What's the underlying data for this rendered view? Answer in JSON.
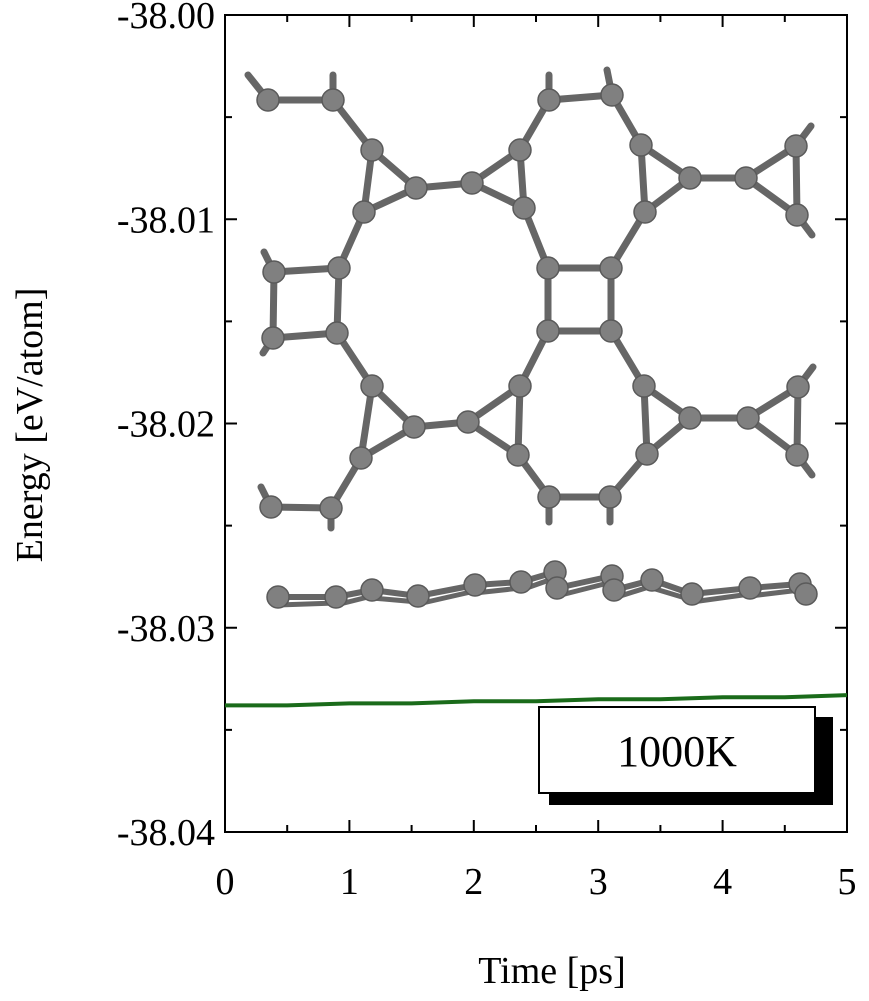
{
  "chart_data": {
    "type": "line",
    "title": "",
    "xlabel": "Time [ps]",
    "ylabel": "Energy [eV/atom]",
    "xlim": [
      0,
      5
    ],
    "ylim": [
      -38.04,
      -38.0
    ],
    "xticks": [
      0,
      1,
      2,
      3,
      4,
      5
    ],
    "xtick_labels": [
      "0",
      "1",
      "2",
      "3",
      "4",
      "5"
    ],
    "yticks": [
      -38.0,
      -38.01,
      -38.02,
      -38.03,
      -38.04
    ],
    "ytick_labels": [
      "-38.00",
      "-38.01",
      "-38.02",
      "-38.03",
      "-38.04"
    ],
    "grid": false,
    "legend_position": "bottom-right",
    "annotation": "1000K",
    "series": [
      {
        "color": "#1a6b1a",
        "x": [
          0,
          0.5,
          1,
          1.5,
          2,
          2.5,
          3,
          3.5,
          4,
          4.5,
          5
        ],
        "values": [
          -38.0338,
          -38.0338,
          -38.0337,
          -38.0337,
          -38.0336,
          -38.0336,
          -38.0335,
          -38.0335,
          -38.0334,
          -38.0334,
          -38.0333
        ]
      }
    ]
  },
  "inset": {
    "description_icon": "atomic-structure-image",
    "atom_color": "#808080",
    "bond_color": "#666666"
  }
}
